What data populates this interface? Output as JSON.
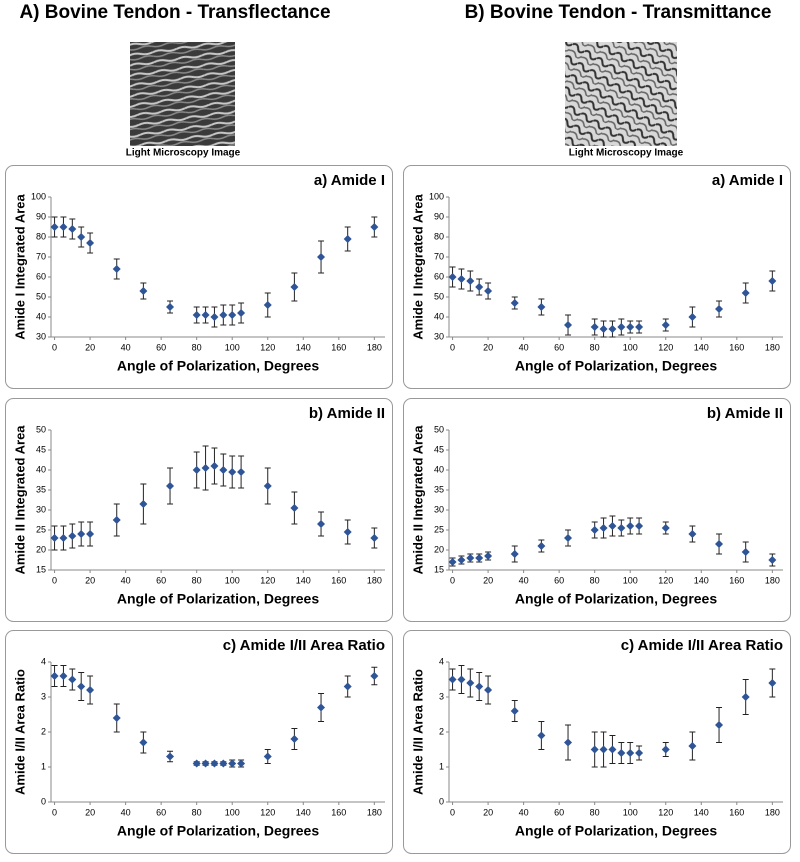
{
  "columns": [
    {
      "title": "A) Bovine Tendon - Transflectance",
      "image_caption": "Light Microscopy Image"
    },
    {
      "title": "B) Bovine Tendon - Transmittance",
      "image_caption": "Light Microscopy Image"
    }
  ],
  "chart_data": [
    {
      "type": "scatter",
      "title": "a) Amide I",
      "x_label": "Angle of Polarization, Degrees",
      "y_label": "Amide I Integrated Area",
      "x": [
        0,
        5,
        10,
        15,
        20,
        35,
        50,
        65,
        80,
        85,
        90,
        95,
        100,
        105,
        120,
        135,
        150,
        165,
        180
      ],
      "series": [
        {
          "color": "#2f5597",
          "values": [
            85,
            85,
            84,
            80,
            77,
            64,
            53,
            45,
            41,
            41,
            40,
            41,
            41,
            42,
            46,
            55,
            70,
            79,
            85
          ],
          "errors": [
            5,
            5,
            5,
            5,
            5,
            5,
            4,
            3,
            4,
            4,
            5,
            5,
            5,
            5,
            6,
            7,
            8,
            6,
            5
          ]
        }
      ],
      "xlim": [
        -2,
        186
      ],
      "xticks": [
        0,
        20,
        40,
        60,
        80,
        100,
        120,
        140,
        160,
        180
      ],
      "ylim": [
        30,
        100
      ],
      "yticks": [
        30,
        40,
        50,
        60,
        70,
        80,
        90,
        100
      ]
    },
    {
      "type": "scatter",
      "title": "b) Amide II",
      "x_label": "Angle of Polarization, Degrees",
      "y_label": "Amide II Integrated Area",
      "x": [
        0,
        5,
        10,
        15,
        20,
        35,
        50,
        65,
        80,
        85,
        90,
        95,
        100,
        105,
        120,
        135,
        150,
        165,
        180
      ],
      "series": [
        {
          "color": "#2f5597",
          "values": [
            23,
            23,
            23.5,
            24,
            24,
            27.5,
            31.5,
            36,
            40,
            40.5,
            41,
            40,
            39.5,
            39.5,
            36,
            30.5,
            26.5,
            24.5,
            23
          ],
          "errors": [
            3,
            3,
            3,
            3,
            3,
            4,
            5,
            4.5,
            4.5,
            5.5,
            4.5,
            4,
            4,
            4,
            4.5,
            4,
            3,
            3,
            2.5
          ]
        }
      ],
      "xlim": [
        -2,
        186
      ],
      "xticks": [
        0,
        20,
        40,
        60,
        80,
        100,
        120,
        140,
        160,
        180
      ],
      "ylim": [
        15,
        50
      ],
      "yticks": [
        15,
        20,
        25,
        30,
        35,
        40,
        45,
        50
      ]
    },
    {
      "type": "scatter",
      "title": "c) Amide I/II Area Ratio",
      "x_label": "Angle of Polarization, Degrees",
      "y_label": "Amide I/II Area Ratio",
      "x": [
        0,
        5,
        10,
        15,
        20,
        35,
        50,
        65,
        80,
        85,
        90,
        95,
        100,
        105,
        120,
        135,
        150,
        165,
        180
      ],
      "series": [
        {
          "color": "#2f5597",
          "values": [
            3.6,
            3.6,
            3.5,
            3.3,
            3.2,
            2.4,
            1.7,
            1.3,
            1.1,
            1.1,
            1.1,
            1.1,
            1.1,
            1.1,
            1.3,
            1.8,
            2.7,
            3.3,
            3.6
          ],
          "errors": [
            0.3,
            0.3,
            0.3,
            0.4,
            0.4,
            0.4,
            0.3,
            0.15,
            0.05,
            0.05,
            0.05,
            0.05,
            0.1,
            0.1,
            0.2,
            0.3,
            0.4,
            0.3,
            0.25
          ]
        }
      ],
      "xlim": [
        -2,
        186
      ],
      "xticks": [
        0,
        20,
        40,
        60,
        80,
        100,
        120,
        140,
        160,
        180
      ],
      "ylim": [
        0,
        4
      ],
      "yticks": [
        0,
        1,
        2,
        3,
        4
      ]
    },
    {
      "type": "scatter",
      "title": "a) Amide I",
      "x_label": "Angle of Polarization, Degrees",
      "y_label": "Amide I Integrated Area",
      "x": [
        0,
        5,
        10,
        15,
        20,
        35,
        50,
        65,
        80,
        85,
        90,
        95,
        100,
        105,
        120,
        135,
        150,
        165,
        180
      ],
      "series": [
        {
          "color": "#2f5597",
          "values": [
            60,
            59,
            58,
            55,
            53,
            47,
            45,
            36,
            35,
            34,
            34,
            35,
            35,
            35,
            36,
            40,
            44,
            52,
            58
          ],
          "errors": [
            5,
            5,
            5,
            4,
            4,
            3,
            4,
            5,
            4,
            4,
            4,
            4,
            3,
            3,
            3,
            5,
            4,
            5,
            5
          ]
        }
      ],
      "xlim": [
        -2,
        186
      ],
      "xticks": [
        0,
        20,
        40,
        60,
        80,
        100,
        120,
        140,
        160,
        180
      ],
      "ylim": [
        30,
        100
      ],
      "yticks": [
        30,
        40,
        50,
        60,
        70,
        80,
        90,
        100
      ]
    },
    {
      "type": "scatter",
      "title": "b) Amide II",
      "x_label": "Angle of Polarization, Degrees",
      "y_label": "Amide II Integrated Area",
      "x": [
        0,
        5,
        10,
        15,
        20,
        35,
        50,
        65,
        80,
        85,
        90,
        95,
        100,
        105,
        120,
        135,
        150,
        165,
        180
      ],
      "series": [
        {
          "color": "#2f5597",
          "values": [
            17,
            17.5,
            18,
            18,
            18.5,
            19,
            21,
            23,
            25,
            25.5,
            26,
            25.5,
            26,
            26,
            25.5,
            24,
            21.5,
            19.5,
            17.5
          ],
          "errors": [
            1,
            1,
            1,
            1,
            1,
            2,
            1.5,
            2,
            2,
            2.5,
            2.5,
            2,
            2,
            2,
            1.5,
            2,
            2.5,
            2.5,
            1.5
          ]
        }
      ],
      "xlim": [
        -2,
        186
      ],
      "xticks": [
        0,
        20,
        40,
        60,
        80,
        100,
        120,
        140,
        160,
        180
      ],
      "ylim": [
        15,
        50
      ],
      "yticks": [
        15,
        20,
        25,
        30,
        35,
        40,
        45,
        50
      ]
    },
    {
      "type": "scatter",
      "title": "c) Amide I/II Area Ratio",
      "x_label": "Angle of Polarization, Degrees",
      "y_label": "Amide I/II Area Ratio",
      "x": [
        0,
        5,
        10,
        15,
        20,
        35,
        50,
        65,
        80,
        85,
        90,
        95,
        100,
        105,
        120,
        135,
        150,
        165,
        180
      ],
      "series": [
        {
          "color": "#2f5597",
          "values": [
            3.5,
            3.5,
            3.4,
            3.3,
            3.2,
            2.6,
            1.9,
            1.7,
            1.5,
            1.5,
            1.5,
            1.4,
            1.4,
            1.4,
            1.5,
            1.6,
            2.2,
            3.0,
            3.4
          ],
          "errors": [
            0.3,
            0.4,
            0.4,
            0.4,
            0.4,
            0.3,
            0.4,
            0.5,
            0.5,
            0.5,
            0.4,
            0.3,
            0.3,
            0.2,
            0.2,
            0.4,
            0.5,
            0.5,
            0.4
          ]
        }
      ],
      "xlim": [
        -2,
        186
      ],
      "xticks": [
        0,
        20,
        40,
        60,
        80,
        100,
        120,
        140,
        160,
        180
      ],
      "ylim": [
        0,
        4
      ],
      "yticks": [
        0,
        1,
        2,
        3,
        4
      ]
    }
  ]
}
